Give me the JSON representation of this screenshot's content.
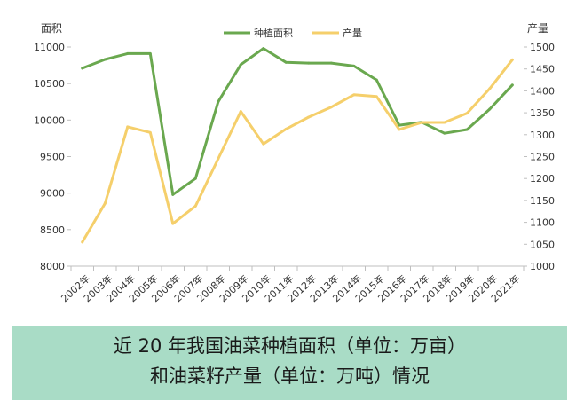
{
  "chart_data": {
    "type": "line",
    "title": "",
    "caption_lines": [
      "近 20 年我国油菜种植面积（单位：万亩）",
      "和油菜籽产量（单位：万吨）情况"
    ],
    "x": [
      "2002年",
      "2003年",
      "2004年",
      "2005年",
      "2006年",
      "2007年",
      "2008年",
      "2009年",
      "2010年",
      "2011年",
      "2012年",
      "2013年",
      "2014年",
      "2015年",
      "2016年",
      "2017年",
      "2018年",
      "2019年",
      "2020年",
      "2021年"
    ],
    "y_left": {
      "label": "面积",
      "ylim": [
        8000,
        11000
      ],
      "ticks": [
        8000,
        8500,
        9000,
        9500,
        10000,
        10500,
        11000
      ]
    },
    "y_right": {
      "label": "产量",
      "ylim": [
        1000,
        1500
      ],
      "ticks": [
        1000,
        1050,
        1100,
        1150,
        1200,
        1250,
        1300,
        1350,
        1400,
        1450,
        1500
      ]
    },
    "grid": false,
    "legend_position": "top-center",
    "series": [
      {
        "name": "种植面积",
        "axis": "left",
        "color": "#6aa84f",
        "values": [
          10710,
          10830,
          10910,
          10910,
          8980,
          9200,
          10250,
          10760,
          10980,
          10790,
          10780,
          10780,
          10740,
          10550,
          9930,
          9970,
          9820,
          9870,
          10150,
          10480
        ]
      },
      {
        "name": "产量",
        "axis": "right",
        "color": "#f5cf6b",
        "values": [
          1055,
          1143,
          1318,
          1305,
          1097,
          1137,
          1245,
          1353,
          1279,
          1313,
          1340,
          1363,
          1391,
          1387,
          1312,
          1328,
          1328,
          1349,
          1405,
          1471
        ]
      }
    ]
  },
  "caption_style": {
    "background": "#a9dcc6"
  }
}
